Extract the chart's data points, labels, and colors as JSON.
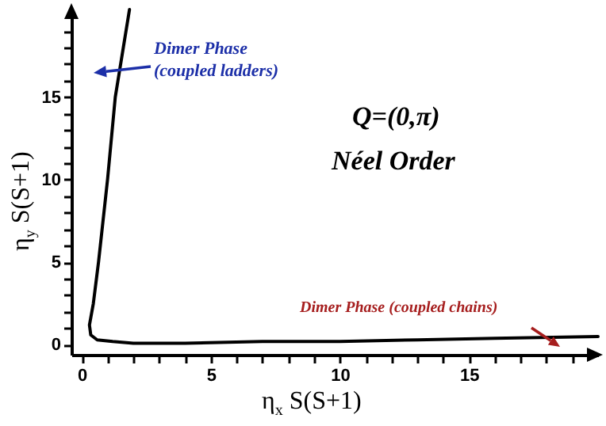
{
  "chart_data": {
    "type": "line",
    "xlabel": "η$_{x}$ S(S+1)",
    "ylabel": "η$_{y}$ S(S+1)",
    "x": [
      1.85,
      1.3,
      1.0,
      0.65,
      0.45,
      0.3,
      0.35,
      0.6,
      1.2,
      2,
      4,
      7,
      10,
      13,
      16,
      20
    ],
    "series": [
      {
        "color": "#000000",
        "values": [
          20.3,
          15,
          10,
          5,
          2.5,
          1.2,
          0.6,
          0.3,
          0.2,
          0.1,
          0.1,
          0.2,
          0.2,
          0.3,
          0.4,
          0.5
        ]
      }
    ],
    "xlim": [
      -0.4,
      20
    ],
    "ylim": [
      -0.6,
      20.4
    ],
    "xticks": [
      0,
      {
        "value": 1,
        "label": null
      },
      {
        "value": 2,
        "label": null
      },
      {
        "value": 3,
        "label": null
      },
      {
        "value": 4,
        "label": null
      },
      5,
      {
        "value": 6,
        "label": null
      },
      {
        "value": 7,
        "label": null
      },
      {
        "value": 8,
        "label": null
      },
      {
        "value": 9,
        "label": null
      },
      10,
      {
        "value": 11,
        "label": null
      },
      {
        "value": 12,
        "label": null
      },
      {
        "value": 13,
        "label": null
      },
      {
        "value": 14,
        "label": null
      },
      15,
      {
        "value": 16,
        "label": null
      },
      {
        "value": 17,
        "label": null
      },
      {
        "value": 18,
        "label": null
      },
      {
        "value": 19,
        "label": null
      }
    ],
    "yticks": [
      0,
      {
        "value": 1,
        "label": null
      },
      {
        "value": 2,
        "label": null
      },
      {
        "value": 3,
        "label": null
      },
      {
        "value": 4,
        "label": null
      },
      5,
      {
        "value": 6,
        "label": null
      },
      {
        "value": 7,
        "label": null
      },
      {
        "value": 8,
        "label": null
      },
      {
        "value": 9,
        "label": null
      },
      10,
      {
        "value": 11,
        "label": null
      },
      {
        "value": 12,
        "label": null
      },
      {
        "value": 13,
        "label": null
      },
      {
        "value": 14,
        "label": null
      },
      15,
      {
        "value": 16,
        "label": null
      },
      {
        "value": 17,
        "label": null
      },
      {
        "value": 18,
        "label": null
      },
      {
        "value": 19,
        "label": null
      }
    ],
    "annotations": [
      "Dimer Phase (coupled ladders)",
      "Q=(0,π)",
      "Néel Order",
      "Dimer Phase (coupled chains)"
    ],
    "marker": "none",
    "line_style": "solid"
  }
}
